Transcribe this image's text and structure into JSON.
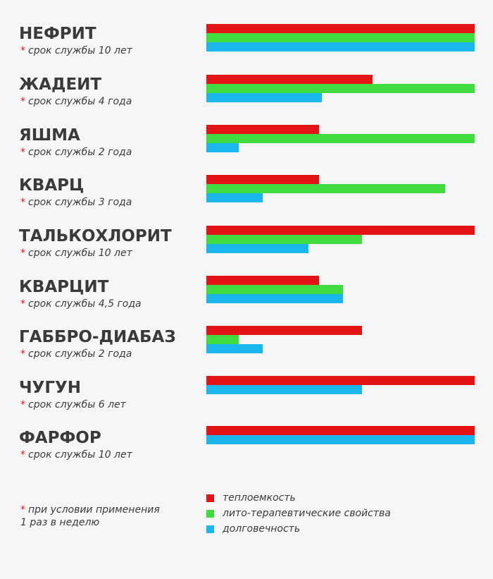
{
  "chart_data": {
    "type": "bar",
    "orientation": "horizontal",
    "xlim": [
      0,
      100
    ],
    "grid": false,
    "legend_position": "bottom",
    "categories": [
      "НЕФРИТ",
      "ЖАДЕИТ",
      "ЯШМА",
      "КВАРЦ",
      "ТАЛЬКОХЛОРИТ",
      "КВАРЦИТ",
      "ГАББРО-ДИАБАЗ",
      "ЧУГУН",
      "ФАРФОР"
    ],
    "subtitles": [
      "срок службы 10 лет",
      "срок службы 4 года",
      "срок службы 2 года",
      "срок службы 3 года",
      "срок службы 10 лет",
      "срок службы 4,5 года",
      "срок службы 2 года",
      "срок службы 6 лет",
      "срок службы 10 лет"
    ],
    "series": [
      {
        "name": "теплоемкость",
        "color": "#e21416",
        "values": [
          100,
          62,
          42,
          42,
          100,
          42,
          58,
          100,
          100
        ]
      },
      {
        "name": "лито-терапевтические свойства",
        "color": "#41db41",
        "values": [
          100,
          100,
          100,
          89,
          58,
          51,
          12,
          null,
          null
        ]
      },
      {
        "name": "долговечность",
        "color": "#1bb6ec",
        "values": [
          100,
          43,
          12,
          21,
          38,
          51,
          21,
          58,
          100
        ]
      }
    ],
    "footnote_star": "*",
    "footnote_line1": "при условии применения",
    "footnote_line2": "1 раз в неделю"
  }
}
